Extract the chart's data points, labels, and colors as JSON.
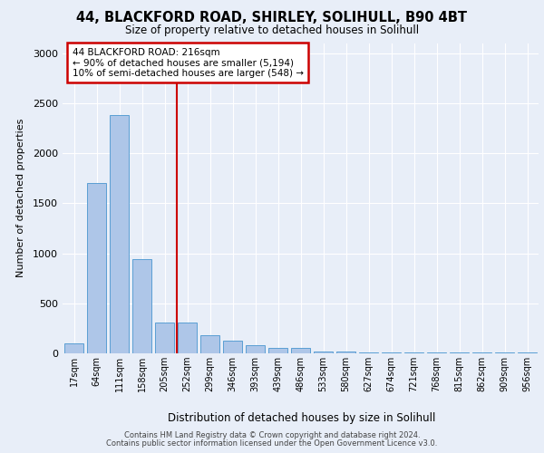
{
  "title_line1": "44, BLACKFORD ROAD, SHIRLEY, SOLIHULL, B90 4BT",
  "title_line2": "Size of property relative to detached houses in Solihull",
  "xlabel": "Distribution of detached houses by size in Solihull",
  "ylabel": "Number of detached properties",
  "bin_labels": [
    "17sqm",
    "64sqm",
    "111sqm",
    "158sqm",
    "205sqm",
    "252sqm",
    "299sqm",
    "346sqm",
    "393sqm",
    "439sqm",
    "486sqm",
    "533sqm",
    "580sqm",
    "627sqm",
    "674sqm",
    "721sqm",
    "768sqm",
    "815sqm",
    "862sqm",
    "909sqm",
    "956sqm"
  ],
  "bar_values": [
    100,
    1700,
    2380,
    940,
    310,
    310,
    185,
    130,
    80,
    55,
    55,
    15,
    15,
    5,
    5,
    5,
    5,
    5,
    5,
    5,
    5
  ],
  "bar_color": "#aec6e8",
  "bar_edge_color": "#5a9fd4",
  "vline_x": 4.55,
  "vline_color": "#cc0000",
  "annotation_text": "44 BLACKFORD ROAD: 216sqm\n← 90% of detached houses are smaller (5,194)\n10% of semi-detached houses are larger (548) →",
  "annotation_box_color": "#cc0000",
  "ylim": [
    0,
    3100
  ],
  "yticks": [
    0,
    500,
    1000,
    1500,
    2000,
    2500,
    3000
  ],
  "bg_color": "#e8eef8",
  "plot_bg_color": "#e8eef8",
  "grid_color": "#ffffff",
  "footer_line1": "Contains HM Land Registry data © Crown copyright and database right 2024.",
  "footer_line2": "Contains public sector information licensed under the Open Government Licence v3.0."
}
